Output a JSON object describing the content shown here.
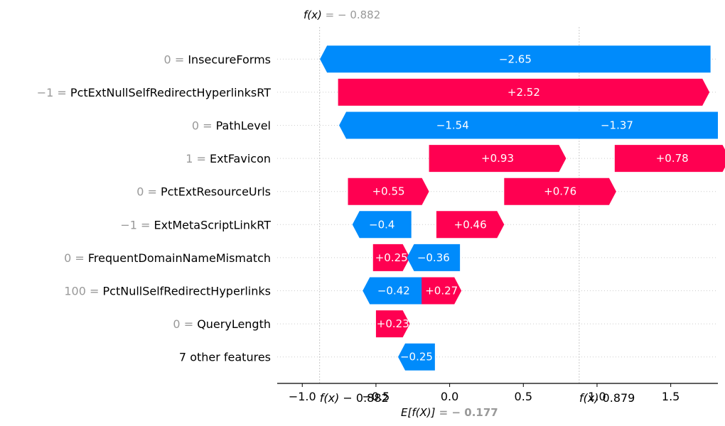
{
  "chart_data": {
    "type": "waterfall",
    "base_value_label": "E[f(X)]",
    "base_value_text": " = − 0.177",
    "base_value": -0.177,
    "output_value_label": "f(x)",
    "output_value_text": " = − 0.882",
    "output_value": -0.882,
    "xlim": [
      -1.17,
      1.82
    ],
    "x_ticks": [
      {
        "value": -1.0,
        "label": "−1.0"
      },
      {
        "value": -0.5,
        "label": "−0.5"
      },
      {
        "value": 0.0,
        "label": "0.0"
      },
      {
        "value": 0.5,
        "label": "0.5"
      },
      {
        "value": 1.0,
        "label": "1.0"
      },
      {
        "value": 1.5,
        "label": "1.5"
      }
    ],
    "overlay_fx_ticks": [
      {
        "label": "f(x)",
        "value_text": "− 0.882",
        "value": -0.882
      },
      {
        "label": "f(x)",
        "value_text": "0.879",
        "value": 0.879
      }
    ],
    "reference_lines": [
      -0.882,
      0.879
    ],
    "features": [
      {
        "value": "0",
        "name": "InsecureForms",
        "shap": -2.65,
        "label": "−2.65",
        "start": 1.77
      },
      {
        "value": "−1",
        "name": "PctExtNullSelfRedirectHyperlinksRT",
        "shap": 2.52,
        "label": "+2.52",
        "start": -0.757
      },
      {
        "value": "0",
        "name": "PathLevel",
        "shap": -1.54,
        "label": "−1.54",
        "start": 0.79,
        "second": {
          "shap": -1.37,
          "label": "−1.37",
          "start": 1.82
        }
      },
      {
        "value": "1",
        "name": "ExtFavicon",
        "shap": 0.93,
        "label": "+0.93",
        "start": -0.14,
        "second": {
          "shap": 0.78,
          "label": "+0.78",
          "start": 1.12
        }
      },
      {
        "value": "0",
        "name": "PctExtResourceUrls",
        "shap": 0.55,
        "label": "+0.55",
        "start": -0.69,
        "second": {
          "shap": 0.76,
          "label": "+0.76",
          "start": 0.37
        }
      },
      {
        "value": "−1",
        "name": "ExtMetaScriptLinkRT",
        "shap": -0.4,
        "label": "−0.4",
        "start": -0.26,
        "second": {
          "shap": 0.46,
          "label": "+0.46",
          "start": -0.09
        }
      },
      {
        "value": "0",
        "name": "FrequentDomainNameMismatch",
        "shap": 0.25,
        "label": "+0.25",
        "start": -0.52,
        "second": {
          "shap": -0.36,
          "label": "−0.36",
          "start": 0.07
        }
      },
      {
        "value": "100",
        "name": "PctNullSelfRedirectHyperlinks",
        "shap": -0.42,
        "label": "−0.42",
        "start": -0.17,
        "second": {
          "shap": 0.27,
          "label": "+0.27",
          "start": -0.19
        }
      },
      {
        "value": "0",
        "name": "QueryLength",
        "shap": 0.23,
        "label": "+0.23",
        "start": -0.5
      },
      {
        "value": "",
        "name": "7 other features",
        "shap": -0.25,
        "label": "−0.25",
        "start": -0.1
      }
    ],
    "colors": {
      "positive": "#ff0051",
      "negative": "#008bfb"
    }
  }
}
